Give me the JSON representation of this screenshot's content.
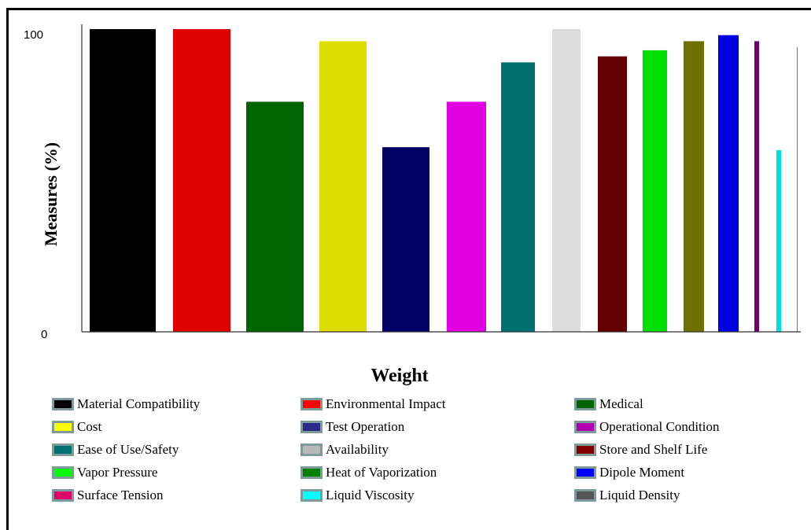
{
  "chart_data": {
    "type": "bar",
    "title": "",
    "ylabel": "Measures (%)",
    "xlabel": "Weight",
    "ylim": [
      0,
      100
    ],
    "yticks": [
      "0",
      "100"
    ],
    "grid": false,
    "legend_position": "bottom",
    "series": [
      {
        "name": "Material Compatibility",
        "value": 100,
        "color": "#000000"
      },
      {
        "name": "Environmental Impact",
        "value": 100,
        "color": "#e00000"
      },
      {
        "name": "Medical",
        "value": 76,
        "color": "#006400"
      },
      {
        "name": "Cost",
        "value": 96,
        "color": "#dede00"
      },
      {
        "name": "Test Operation",
        "value": 61,
        "color": "#000064"
      },
      {
        "name": "Operational Condition",
        "value": 76,
        "color": "#e000e0"
      },
      {
        "name": "Ease of Use/Safety",
        "value": 89,
        "color": "#007070"
      },
      {
        "name": "Availability",
        "value": 100,
        "color": "#dcdcdc"
      },
      {
        "name": "Store and Shelf Life",
        "value": 91,
        "color": "#640000"
      },
      {
        "name": "Vapor Pressure",
        "value": 93,
        "color": "#00e000"
      },
      {
        "name": "Heat of Vaporization",
        "value": 96,
        "color": "#707000"
      },
      {
        "name": "Dipole Moment",
        "value": 98,
        "color": "#0000e0"
      },
      {
        "name": "Surface Tension",
        "value": 96,
        "color": "#700070"
      },
      {
        "name": "Liquid Viscosity",
        "value": 60,
        "color": "#00e0e0"
      },
      {
        "name": "Liquid Density",
        "value": 94,
        "color": "#707070"
      }
    ],
    "legend_swatch_colors": [
      "#000000",
      "#ff0000",
      "#006400",
      "#ffff00",
      "#2a2a8a",
      "#b000b0",
      "#007070",
      "#b8b8b8",
      "#800000",
      "#00ff00",
      "#008000",
      "#0000ff",
      "#e0006a",
      "#00ffff",
      "#555555"
    ]
  }
}
